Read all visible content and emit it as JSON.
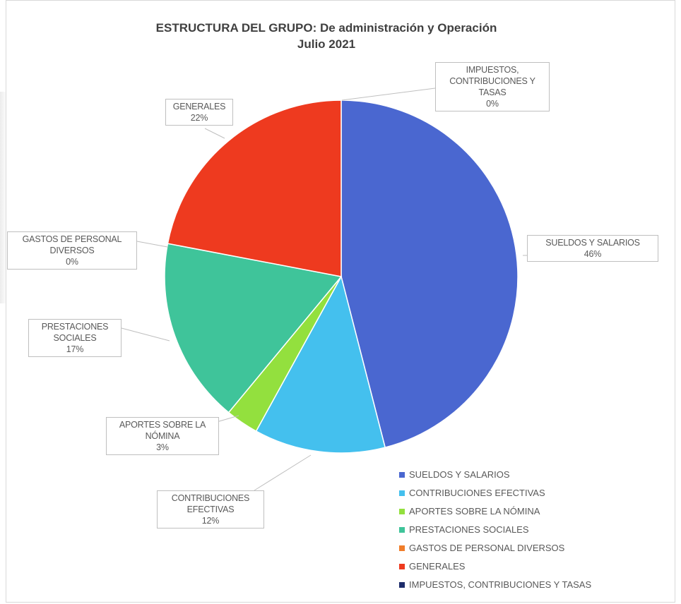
{
  "chart_data": {
    "type": "pie",
    "title": "ESTRUCTURA DEL GRUPO: De administración y Operación",
    "subtitle": "Julio 2021",
    "slices": [
      {
        "label_lines": [
          "SUELDOS Y SALARIOS"
        ],
        "legend": "SUELDOS Y SALARIOS",
        "value": 46,
        "display": "46%",
        "color": "#4a67d0"
      },
      {
        "label_lines": [
          "CONTRIBUCIONES",
          "EFECTIVAS"
        ],
        "legend": "CONTRIBUCIONES EFECTIVAS",
        "value": 12,
        "display": "12%",
        "color": "#44c0ee"
      },
      {
        "label_lines": [
          "APORTES SOBRE LA",
          "NÓMINA"
        ],
        "legend": "APORTES SOBRE LA NÓMINA",
        "value": 3,
        "display": "3%",
        "color": "#93e03e"
      },
      {
        "label_lines": [
          "PRESTACIONES",
          "SOCIALES"
        ],
        "legend": "PRESTACIONES SOCIALES",
        "value": 17,
        "display": "17%",
        "color": "#3fc49a"
      },
      {
        "label_lines": [
          "GASTOS DE PERSONAL",
          "DIVERSOS"
        ],
        "legend": "GASTOS DE PERSONAL DIVERSOS",
        "value": 0,
        "display": "0%",
        "color": "#f07d2a"
      },
      {
        "label_lines": [
          "GENERALES"
        ],
        "legend": "GENERALES",
        "value": 22,
        "display": "22%",
        "color": "#ee3a1f"
      },
      {
        "label_lines": [
          "IMPUESTOS,",
          "CONTRIBUCIONES Y",
          "TASAS"
        ],
        "legend": "IMPUESTOS, CONTRIBUCIONES Y TASAS",
        "value": 0,
        "display": "0%",
        "color": "#1d2c6b"
      }
    ],
    "legend_position": "bottom-right"
  }
}
